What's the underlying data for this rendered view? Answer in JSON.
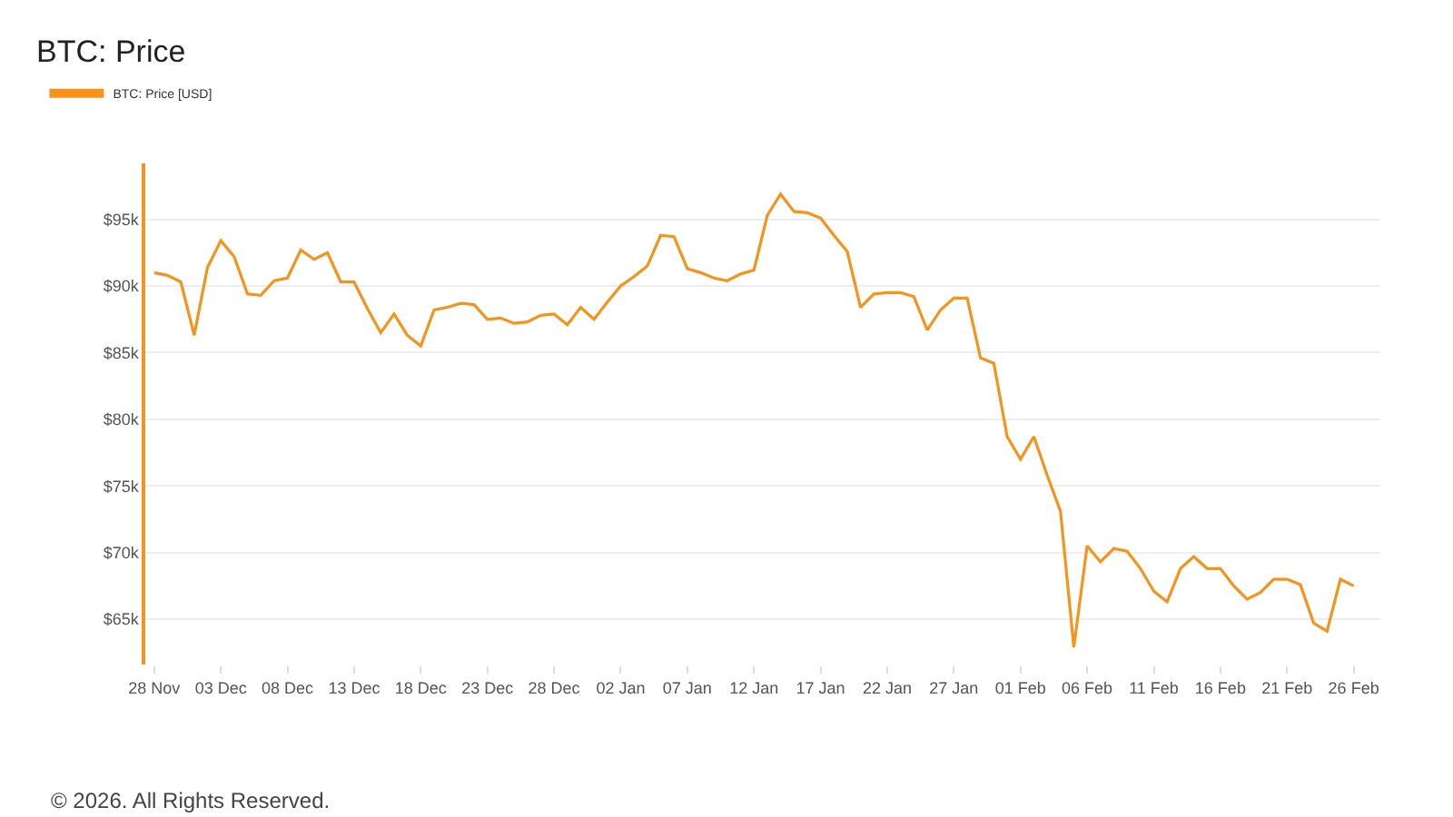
{
  "chart_data": {
    "type": "line",
    "title": "BTC: Price",
    "series": [
      {
        "name": "BTC: Price [USD]",
        "color": "#f7931a",
        "values": [
          91000,
          90800,
          90300,
          86300,
          91400,
          93400,
          92200,
          89400,
          89300,
          90400,
          90600,
          92700,
          92000,
          92500,
          90300,
          90300,
          88300,
          86500,
          87900,
          86300,
          85500,
          88200,
          88400,
          88700,
          88600,
          87500,
          87600,
          87200,
          87300,
          87800,
          87900,
          87100,
          88400,
          87500,
          88800,
          90000,
          90700,
          91500,
          93800,
          93700,
          91300,
          91000,
          90600,
          90400,
          90900,
          91200,
          95300,
          96900,
          95600,
          95500,
          95100,
          93800,
          92600,
          88400,
          89400,
          89500,
          89500,
          89200,
          86700,
          88200,
          89100,
          89100,
          84600,
          84200,
          78700,
          77000,
          78700,
          75800,
          73100,
          62900,
          70500,
          69300,
          70300,
          70100,
          68800,
          67100,
          66300,
          68800,
          69700,
          68800,
          68800,
          67500,
          66500,
          67000,
          68000,
          68000,
          67600,
          64700,
          64100,
          68000,
          67500
        ]
      }
    ],
    "x": [
      "2025-11-28",
      "2025-11-29",
      "2025-11-30",
      "2025-12-01",
      "2025-12-02",
      "2025-12-03",
      "2025-12-04",
      "2025-12-05",
      "2025-12-06",
      "2025-12-07",
      "2025-12-08",
      "2025-12-09",
      "2025-12-10",
      "2025-12-11",
      "2025-12-12",
      "2025-12-13",
      "2025-12-14",
      "2025-12-15",
      "2025-12-16",
      "2025-12-17",
      "2025-12-18",
      "2025-12-19",
      "2025-12-20",
      "2025-12-21",
      "2025-12-22",
      "2025-12-23",
      "2025-12-24",
      "2025-12-25",
      "2025-12-26",
      "2025-12-27",
      "2025-12-28",
      "2025-12-29",
      "2025-12-30",
      "2025-12-31",
      "2026-01-01",
      "2026-01-02",
      "2026-01-03",
      "2026-01-04",
      "2026-01-05",
      "2026-01-06",
      "2026-01-07",
      "2026-01-08",
      "2026-01-09",
      "2026-01-10",
      "2026-01-11",
      "2026-01-12",
      "2026-01-13",
      "2026-01-14",
      "2026-01-15",
      "2026-01-16",
      "2026-01-17",
      "2026-01-18",
      "2026-01-19",
      "2026-01-20",
      "2026-01-21",
      "2026-01-22",
      "2026-01-23",
      "2026-01-24",
      "2026-01-25",
      "2026-01-26",
      "2026-01-27",
      "2026-01-28",
      "2026-01-29",
      "2026-01-30",
      "2026-01-31",
      "2026-02-01",
      "2026-02-02",
      "2026-02-03",
      "2026-02-04",
      "2026-02-05",
      "2026-02-06",
      "2026-02-07",
      "2026-02-08",
      "2026-02-09",
      "2026-02-10",
      "2026-02-11",
      "2026-02-12",
      "2026-02-13",
      "2026-02-14",
      "2026-02-15",
      "2026-02-16",
      "2026-02-17",
      "2026-02-18",
      "2026-02-19",
      "2026-02-20",
      "2026-02-21",
      "2026-02-22",
      "2026-02-23",
      "2026-02-24",
      "2026-02-25",
      "2026-02-26"
    ],
    "xlim": [
      "2025-11-27T08:00",
      "2026-02-28"
    ],
    "xticks": [
      {
        "value": "2025-11-28",
        "label": "28 Nov"
      },
      {
        "value": "2025-12-03",
        "label": "03 Dec"
      },
      {
        "value": "2025-12-08",
        "label": "08 Dec"
      },
      {
        "value": "2025-12-13",
        "label": "13 Dec"
      },
      {
        "value": "2025-12-18",
        "label": "18 Dec"
      },
      {
        "value": "2025-12-23",
        "label": "23 Dec"
      },
      {
        "value": "2025-12-28",
        "label": "28 Dec"
      },
      {
        "value": "2026-01-02",
        "label": "02 Jan"
      },
      {
        "value": "2026-01-07",
        "label": "07 Jan"
      },
      {
        "value": "2026-01-12",
        "label": "12 Jan"
      },
      {
        "value": "2026-01-17",
        "label": "17 Jan"
      },
      {
        "value": "2026-01-22",
        "label": "22 Jan"
      },
      {
        "value": "2026-01-27",
        "label": "27 Jan"
      },
      {
        "value": "2026-02-01",
        "label": "01 Feb"
      },
      {
        "value": "2026-02-06",
        "label": "06 Feb"
      },
      {
        "value": "2026-02-11",
        "label": "11 Feb"
      },
      {
        "value": "2026-02-16",
        "label": "16 Feb"
      },
      {
        "value": "2026-02-21",
        "label": "21 Feb"
      },
      {
        "value": "2026-02-26",
        "label": "26 Feb"
      }
    ],
    "ylim": [
      61600,
      99200
    ],
    "yticks": [
      {
        "value": 65000,
        "label": "$65k"
      },
      {
        "value": 70000,
        "label": "$70k"
      },
      {
        "value": 75000,
        "label": "$75k"
      },
      {
        "value": 80000,
        "label": "$80k"
      },
      {
        "value": 85000,
        "label": "$85k"
      },
      {
        "value": 90000,
        "label": "$90k"
      },
      {
        "value": 95000,
        "label": "$95k"
      }
    ],
    "grid": "y",
    "legend": "top left",
    "marker": "none",
    "line_style": "solid",
    "annotations": [
      "© 2026. All Rights Reserved."
    ]
  }
}
